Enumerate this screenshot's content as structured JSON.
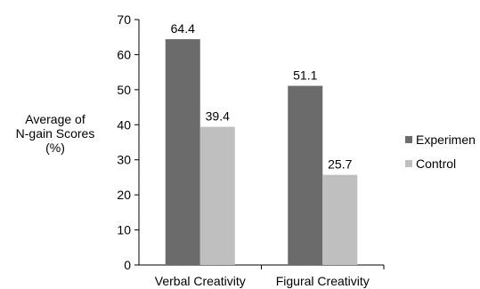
{
  "chart_data": {
    "type": "bar",
    "categories": [
      "Verbal Creativity",
      "Figural Creativity"
    ],
    "series": [
      {
        "name": "Experimen",
        "values": [
          64.4,
          51.1
        ],
        "color": "#6b6b6b"
      },
      {
        "name": "Control",
        "values": [
          39.4,
          25.7
        ],
        "color": "#bfbfbf"
      }
    ],
    "ylabel_lines": [
      "Average of",
      "N-gain Scores",
      "(%)"
    ],
    "ylim": [
      0,
      70
    ],
    "yticks": [
      0,
      10,
      20,
      30,
      40,
      50,
      60,
      70
    ],
    "grid": false,
    "legend_position": "right"
  }
}
